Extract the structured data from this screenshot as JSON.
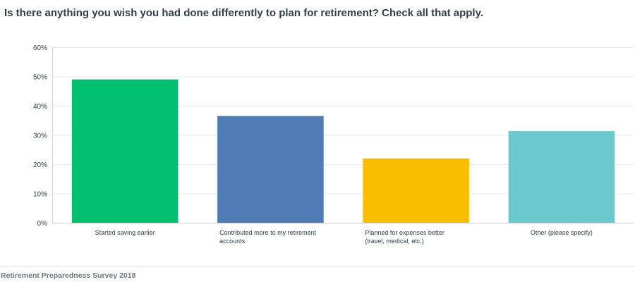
{
  "question": {
    "title": "Is there anything you wish you had done differently to plan for retirement? Check all that apply."
  },
  "chart_data": {
    "type": "bar",
    "categories": [
      [
        "Started saving earlier"
      ],
      [
        "Contributed more to my retirement",
        "accounts"
      ],
      [
        "Planned for expenses better",
        "(travel, medical, etc.)"
      ],
      [
        "Other (please specify)"
      ]
    ],
    "values": [
      49,
      36.5,
      22,
      31.3
    ],
    "colors": [
      "#00bf6f",
      "#507cb6",
      "#f9be00",
      "#6bc8cd"
    ],
    "ylim": [
      0,
      60
    ],
    "yticks": [
      0,
      10,
      20,
      30,
      40,
      50,
      60
    ],
    "ytick_labels": [
      "0%",
      "10%",
      "20%",
      "30%",
      "40%",
      "50%",
      "60%"
    ],
    "grid": true,
    "legend": "none",
    "title": "",
    "xlabel": "",
    "ylabel": ""
  },
  "footer": {
    "source": "Retirement Preparedness Survey 2018"
  }
}
